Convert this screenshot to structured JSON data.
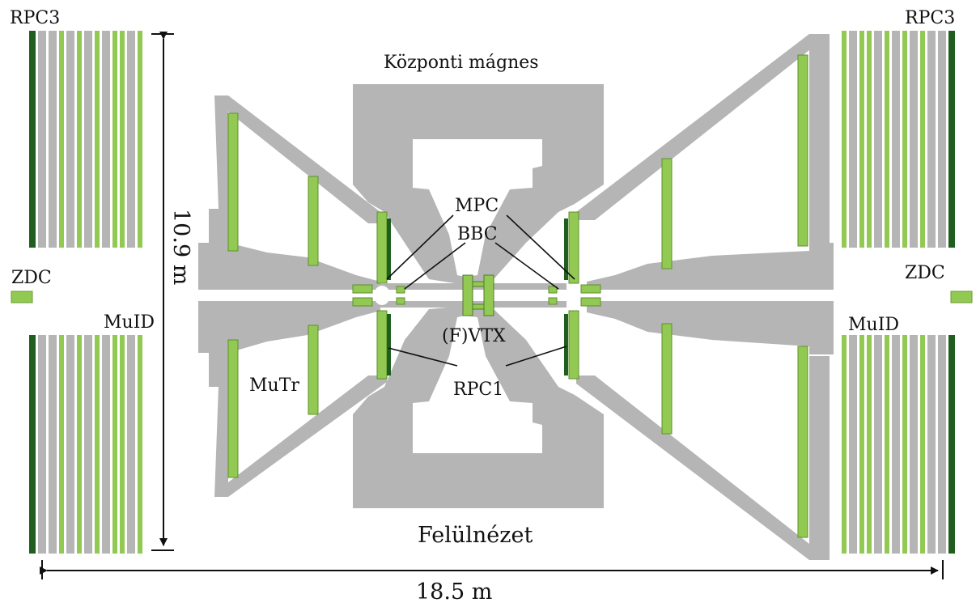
{
  "labels": {
    "rpc3_left": "RPC3",
    "rpc3_right": "RPC3",
    "zdc_left": "ZDC",
    "zdc_right": "ZDC",
    "muid_left": "MuID",
    "muid_right": "MuID",
    "central_magnet": "Központi mágnes",
    "mpc": "MPC",
    "bbc": "BBC",
    "fvtx": "(F)VTX",
    "rpc1": "RPC1",
    "mutr": "MuTr",
    "top_view": "Felülnézet",
    "height_dim": "10.9 m",
    "width_dim": "18.5 m"
  },
  "colors": {
    "detector_gray": "#b5b5b5",
    "light_green": "#92c952",
    "dark_green": "#1f5e1f",
    "line": "#111111"
  }
}
